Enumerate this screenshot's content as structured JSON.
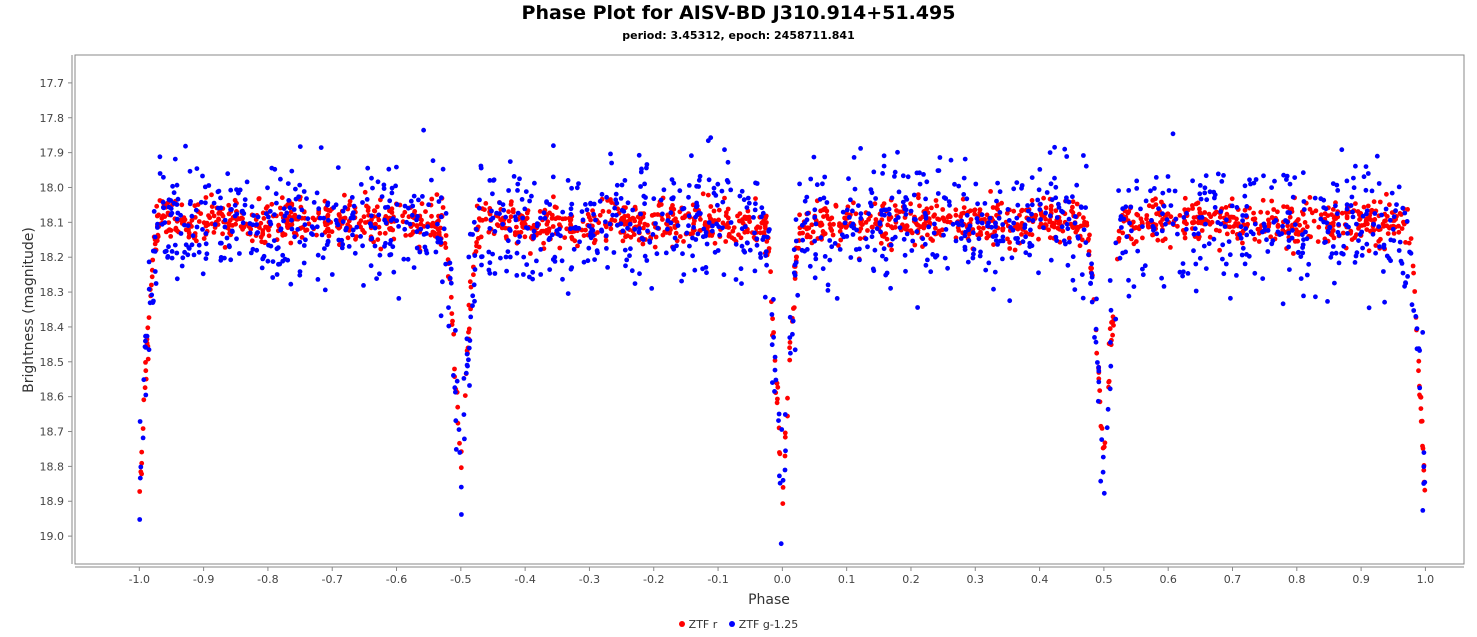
{
  "chart_data": {
    "type": "scatter",
    "title": "Phase Plot for AISV-BD J310.914+51.495",
    "subtitle": "period: 3.45312, epoch: 2458711.841",
    "xlabel": "Phase",
    "ylabel": "Brightness (magnitude)",
    "xlim": [
      -1.1,
      1.06
    ],
    "ylim": [
      19.08,
      17.62
    ],
    "y_inverted": true,
    "x_ticks": [
      "-1.0",
      "-0.9",
      "-0.8",
      "-0.7",
      "-0.6",
      "-0.5",
      "-0.4",
      "-0.3",
      "-0.2",
      "-0.1",
      "0.0",
      "0.1",
      "0.2",
      "0.3",
      "0.4",
      "0.5",
      "0.6",
      "0.7",
      "0.8",
      "0.9",
      "1.0"
    ],
    "y_ticks": [
      "17.7",
      "17.8",
      "17.9",
      "18.0",
      "18.1",
      "18.2",
      "18.3",
      "18.4",
      "18.5",
      "18.6",
      "18.7",
      "18.8",
      "18.9",
      "19.0"
    ],
    "grid": false,
    "legend_position": "bottom",
    "series": [
      {
        "name": "ZTF r",
        "color": "#ff0000",
        "baseline": 18.1,
        "scatter": 0.03,
        "eclipse_depth_primary": 0.82,
        "eclipse_depth_secondary": 0.72,
        "eclipse_phases_primary": [
          -1.0,
          0.0,
          1.0
        ],
        "eclipse_phases_secondary": [
          -0.5,
          0.5
        ],
        "eclipse_halfwidth": 0.03
      },
      {
        "name": "ZTF g-1.25",
        "color": "#0000ff",
        "baseline": 18.1,
        "scatter": 0.09,
        "eclipse_depth_primary": 0.82,
        "eclipse_depth_secondary": 0.75,
        "eclipse_phases_primary": [
          -1.0,
          0.0,
          1.0
        ],
        "eclipse_phases_secondary": [
          -0.5,
          0.5
        ],
        "eclipse_halfwidth": 0.03
      }
    ]
  }
}
